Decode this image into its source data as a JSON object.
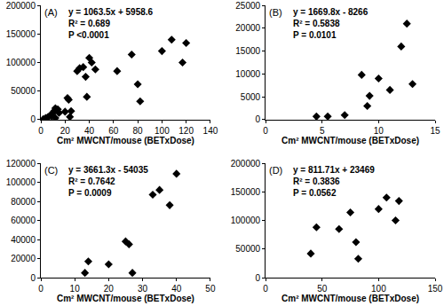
{
  "chart_data": [
    {
      "type": "scatter",
      "title": "(A)",
      "annotations": [
        "y = 1063.5x + 5958.6",
        "R² = 0.689",
        "P <0.0001"
      ],
      "xlabel": "Cm² MWCNT/mouse (BETxDose)",
      "x": [
        2,
        4,
        5,
        6,
        8,
        9,
        10,
        11,
        12,
        12,
        14,
        15,
        20,
        22,
        23,
        24,
        25,
        30,
        32,
        35,
        37,
        38,
        40,
        42,
        45,
        63,
        75,
        80,
        82,
        100,
        108,
        117,
        120
      ],
      "values": [
        1000,
        3000,
        2000,
        5000,
        8000,
        6000,
        12000,
        15000,
        20000,
        3000,
        18000,
        12000,
        14000,
        38000,
        35000,
        5000,
        15000,
        85000,
        90000,
        92000,
        75000,
        40000,
        108000,
        100000,
        88000,
        85000,
        114000,
        62000,
        32000,
        120000,
        140000,
        100000,
        134000
      ],
      "xlim": [
        0,
        140
      ],
      "xticks": [
        0,
        20,
        40,
        60,
        80,
        100,
        120,
        140
      ],
      "ylim": [
        0,
        200000
      ],
      "yticks": [
        0,
        50000,
        100000,
        150000,
        200000
      ],
      "color": "#000000",
      "marker": "diamond",
      "grid": false
    },
    {
      "type": "scatter",
      "title": "(B)",
      "annotations": [
        "y = 1669.8x - 8266",
        "R² = 0.5838",
        "P = 0.0101"
      ],
      "xlabel": "Cm² MWCNT/mouse (BETxDose)",
      "x": [
        4.5,
        5.5,
        7,
        8.5,
        9,
        9.2,
        10,
        11,
        12,
        12.5,
        13
      ],
      "values": [
        700,
        700,
        1000,
        9800,
        3000,
        5200,
        9000,
        6500,
        16000,
        21000,
        7800
      ],
      "xlim": [
        0,
        15
      ],
      "xticks": [
        0,
        5,
        10,
        15
      ],
      "ylim": [
        0,
        25000
      ],
      "yticks": [
        0,
        5000,
        10000,
        15000,
        20000,
        25000
      ],
      "color": "#000000",
      "marker": "diamond",
      "grid": false
    },
    {
      "type": "scatter",
      "title": "(C)",
      "annotations": [
        "y = 3661.3x - 54035",
        "R² = 0.7642",
        "P = 0.0009"
      ],
      "xlabel": "Cm² MWCNT/mouse (BETxDose)",
      "x": [
        13,
        14,
        20,
        25,
        26,
        27,
        33,
        35,
        38,
        40
      ],
      "values": [
        5000,
        17000,
        14000,
        38000,
        35000,
        5000,
        87000,
        92000,
        76000,
        109000
      ],
      "xlim": [
        0,
        50
      ],
      "xticks": [
        0,
        10,
        20,
        30,
        40,
        50
      ],
      "ylim": [
        0,
        120000
      ],
      "yticks": [
        0,
        20000,
        40000,
        60000,
        80000,
        100000,
        120000
      ],
      "color": "#000000",
      "marker": "diamond",
      "grid": false
    },
    {
      "type": "scatter",
      "title": "(D)",
      "annotations": [
        "y = 811.71x + 23469",
        "R² = 0.3836",
        "P = 0.0562"
      ],
      "xlabel": "Cm² MWCNT/mouse (BETxDose)",
      "x": [
        40,
        45,
        65,
        75,
        80,
        82,
        100,
        107,
        115,
        118
      ],
      "values": [
        42000,
        88000,
        85000,
        114000,
        62000,
        33000,
        120000,
        140000,
        100000,
        134000
      ],
      "xlim": [
        0,
        150
      ],
      "xticks": [
        0,
        50,
        100,
        150
      ],
      "ylim": [
        0,
        200000
      ],
      "yticks": [
        0,
        50000,
        100000,
        150000,
        200000
      ],
      "color": "#000000",
      "marker": "diamond",
      "grid": false
    }
  ]
}
